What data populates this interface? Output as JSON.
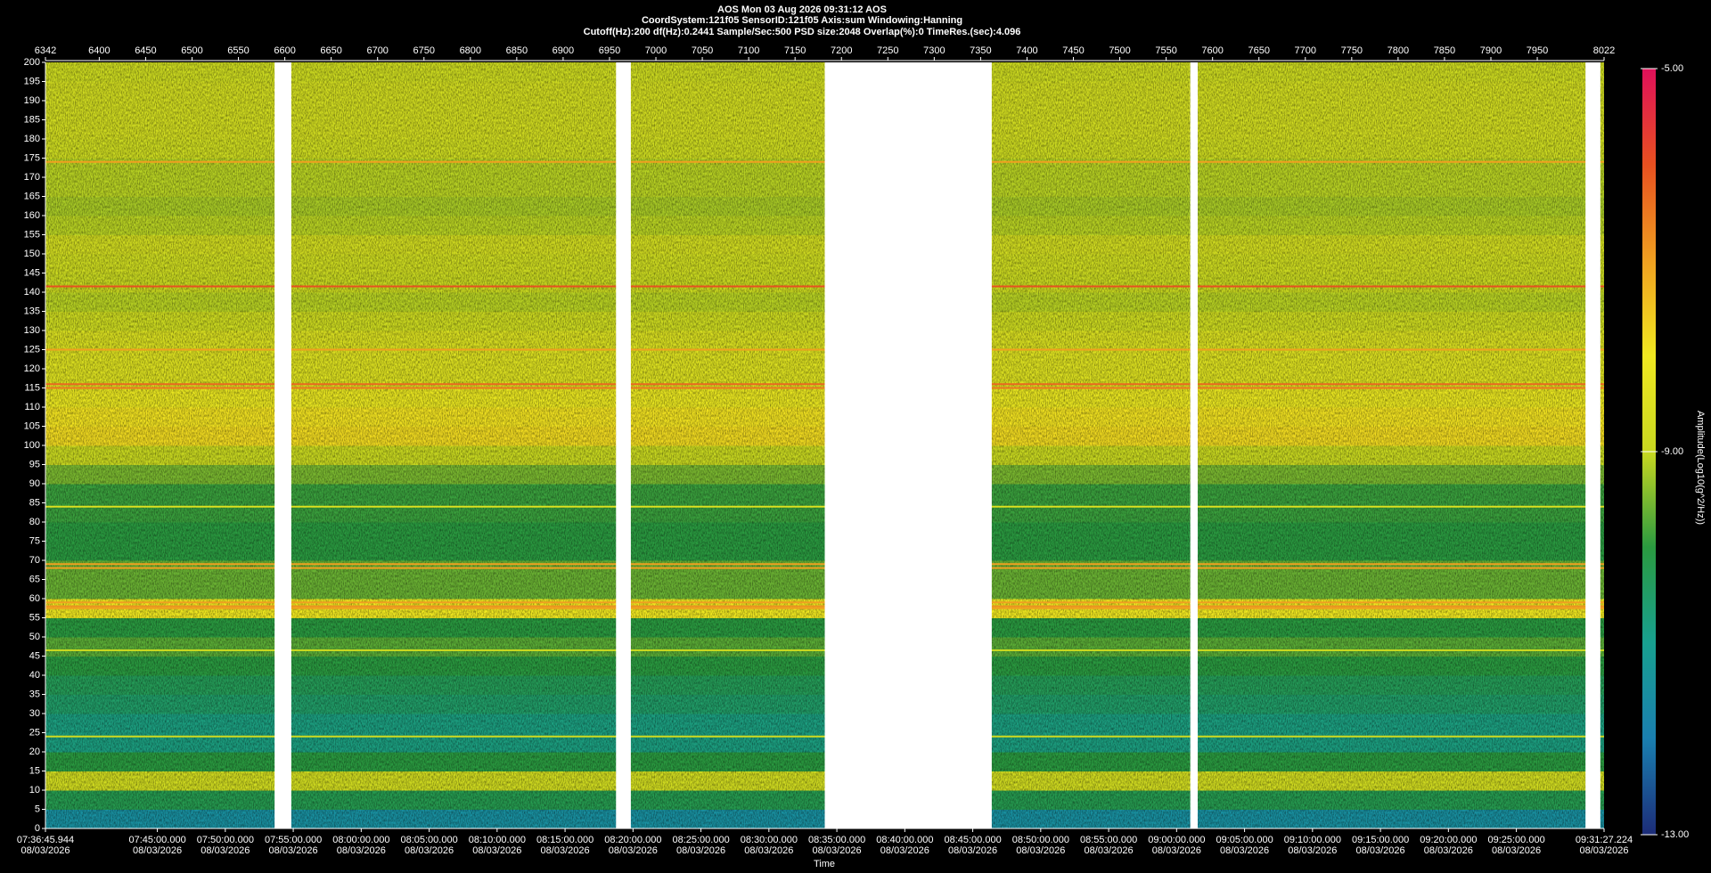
{
  "chart_data": {
    "type": "spectrogram",
    "title": "AOS  Mon 03 Aug 2026 09:31:12  AOS",
    "subtitle": [
      "CoordSystem:121f05   SensorID:121f05    Axis:sum    Windowing:Hanning",
      "Cutoff(Hz):200    df(Hz):0.2441    Sample/Sec:500    PSD size:2048    Overlap(%):0    TimeRes.(sec):4.096"
    ],
    "xlabel": "Time",
    "colorbar_label": "Amplitude(Log10(g^2/Hz))",
    "xlim": [
      6342,
      8022
    ],
    "xticks": [
      6342,
      6400,
      6450,
      6500,
      6550,
      6600,
      6650,
      6700,
      6750,
      6800,
      6850,
      6900,
      6950,
      7000,
      7050,
      7100,
      7150,
      7200,
      7250,
      7300,
      7350,
      7400,
      7450,
      7500,
      7550,
      7600,
      7650,
      7700,
      7750,
      7800,
      7850,
      7900,
      7950,
      8022
    ],
    "time_ticks": [
      {
        "time": "07:36:45.944",
        "date": "08/03/2026"
      },
      {
        "time": "07:45:00.000",
        "date": "08/03/2026"
      },
      {
        "time": "07:50:00.000",
        "date": "08/03/2026"
      },
      {
        "time": "07:55:00.000",
        "date": "08/03/2026"
      },
      {
        "time": "08:00:00.000",
        "date": "08/03/2026"
      },
      {
        "time": "08:05:00.000",
        "date": "08/03/2026"
      },
      {
        "time": "08:10:00.000",
        "date": "08/03/2026"
      },
      {
        "time": "08:15:00.000",
        "date": "08/03/2026"
      },
      {
        "time": "08:20:00.000",
        "date": "08/03/2026"
      },
      {
        "time": "08:25:00.000",
        "date": "08/03/2026"
      },
      {
        "time": "08:30:00.000",
        "date": "08/03/2026"
      },
      {
        "time": "08:35:00.000",
        "date": "08/03/2026"
      },
      {
        "time": "08:40:00.000",
        "date": "08/03/2026"
      },
      {
        "time": "08:45:00.000",
        "date": "08/03/2026"
      },
      {
        "time": "08:50:00.000",
        "date": "08/03/2026"
      },
      {
        "time": "08:55:00.000",
        "date": "08/03/2026"
      },
      {
        "time": "09:00:00.000",
        "date": "08/03/2026"
      },
      {
        "time": "09:05:00.000",
        "date": "08/03/2026"
      },
      {
        "time": "09:10:00.000",
        "date": "08/03/2026"
      },
      {
        "time": "09:15:00.000",
        "date": "08/03/2026"
      },
      {
        "time": "09:20:00.000",
        "date": "08/03/2026"
      },
      {
        "time": "09:25:00.000",
        "date": "08/03/2026"
      },
      {
        "time": "09:31:27.224",
        "date": "08/03/2026"
      }
    ],
    "ylim": [
      0,
      200
    ],
    "yticks": [
      0,
      5,
      10,
      15,
      20,
      25,
      30,
      35,
      40,
      45,
      50,
      55,
      60,
      65,
      70,
      75,
      80,
      85,
      90,
      95,
      100,
      105,
      110,
      115,
      120,
      125,
      130,
      135,
      140,
      145,
      150,
      155,
      160,
      165,
      170,
      175,
      180,
      185,
      190,
      195,
      200
    ],
    "zlim": [
      -13,
      -5
    ],
    "zticks": [
      {
        "value": -5,
        "label": "-5.00"
      },
      {
        "value": -9,
        "label": "-9.00"
      },
      {
        "value": -13,
        "label": "-13.00"
      }
    ],
    "colormap": [
      {
        "value": -13,
        "color": "#1c2c78"
      },
      {
        "value": -12,
        "color": "#1a7fb0"
      },
      {
        "value": -11,
        "color": "#18a090"
      },
      {
        "value": -10,
        "color": "#2a9a40"
      },
      {
        "value": -9.5,
        "color": "#7ab830"
      },
      {
        "value": -9,
        "color": "#c8d820"
      },
      {
        "value": -8,
        "color": "#f0e820"
      },
      {
        "value": -7,
        "color": "#f0a020"
      },
      {
        "value": -6,
        "color": "#e85020"
      },
      {
        "value": -5,
        "color": "#e0105a"
      }
    ],
    "band_edges": [
      0,
      5,
      10,
      15,
      20,
      25,
      30,
      35,
      40,
      45,
      50,
      55,
      60,
      65,
      70,
      75,
      80,
      85,
      90,
      95,
      100,
      105,
      110,
      115,
      120,
      125,
      130,
      135,
      140,
      145,
      150,
      155,
      160,
      165,
      170,
      175,
      180,
      185,
      190,
      195,
      200
    ],
    "band_amplitude": [
      -11.5,
      -10.2,
      -8.8,
      -10,
      -10.8,
      -10.8,
      -10.5,
      -10.3,
      -10,
      -9.7,
      -10,
      -8,
      -9.6,
      -9.6,
      -10,
      -10,
      -9.9,
      -9.9,
      -9.5,
      -9,
      -7.8,
      -7.9,
      -8.2,
      -8.5,
      -8.5,
      -8.6,
      -8.9,
      -9.1,
      -9,
      -8.9,
      -8.8,
      -9.1,
      -9.2,
      -9.1,
      -9.1,
      -8.9,
      -8.8,
      -8.8,
      -8.8,
      -8.9
    ],
    "tonal_lines": [
      {
        "frequency": 174,
        "amplitude": -7
      },
      {
        "frequency": 141.5,
        "amplitude": -6
      },
      {
        "frequency": 125,
        "amplitude": -7
      },
      {
        "frequency": 116,
        "amplitude": -6.3
      },
      {
        "frequency": 115,
        "amplitude": -6.5
      },
      {
        "frequency": 84,
        "amplitude": -8.5
      },
      {
        "frequency": 69,
        "amplitude": -7
      },
      {
        "frequency": 68,
        "amplitude": -7
      },
      {
        "frequency": 59,
        "amplitude": -7
      },
      {
        "frequency": 58,
        "amplitude": -6.8
      },
      {
        "frequency": 57.5,
        "amplitude": -7
      },
      {
        "frequency": 46.5,
        "amplitude": -9
      },
      {
        "frequency": 24,
        "amplitude": -8.8
      }
    ],
    "gaps": [
      [
        6589,
        6607
      ],
      [
        6957,
        6973
      ],
      [
        7182,
        7362
      ],
      [
        7576,
        7584
      ],
      [
        8002,
        8018
      ]
    ]
  }
}
